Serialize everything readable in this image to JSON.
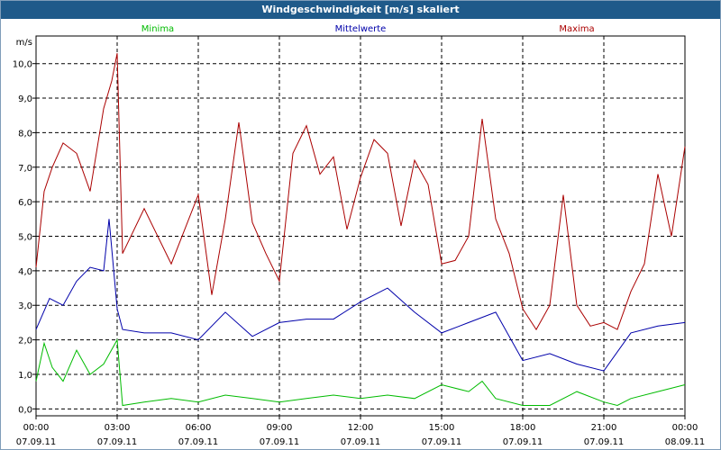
{
  "chart_data": {
    "type": "line",
    "title": "Windgeschwindigkeit [m/s] skaliert",
    "ylabel": "m/s",
    "ylim": [
      -0.2,
      10.8
    ],
    "xlim": [
      0,
      24
    ],
    "yticks": [
      0,
      1,
      2,
      3,
      4,
      5,
      6,
      7,
      8,
      9,
      10
    ],
    "ytick_labels": [
      "0,0",
      "1,0",
      "2,0",
      "3,0",
      "4,0",
      "5,0",
      "6,0",
      "7,0",
      "8,0",
      "9,0",
      "10,0"
    ],
    "xticks": [
      {
        "pos": 0,
        "time": "00:00",
        "date": "07.09.11"
      },
      {
        "pos": 3,
        "time": "03:00",
        "date": "07.09.11"
      },
      {
        "pos": 6,
        "time": "06:00",
        "date": "07.09.11"
      },
      {
        "pos": 9,
        "time": "09:00",
        "date": "07.09.11"
      },
      {
        "pos": 12,
        "time": "12:00",
        "date": "07.09.11"
      },
      {
        "pos": 15,
        "time": "15:00",
        "date": "07.09.11"
      },
      {
        "pos": 18,
        "time": "18:00",
        "date": "07.09.11"
      },
      {
        "pos": 21,
        "time": "21:00",
        "date": "07.09.11"
      },
      {
        "pos": 24,
        "time": "00:00",
        "date": "08.09.11"
      }
    ],
    "series": [
      {
        "name": "Minima",
        "color": "#00bb00",
        "x": [
          0,
          0.3,
          0.6,
          1,
          1.5,
          2,
          2.5,
          3,
          3.2,
          4,
          5,
          6,
          7,
          8,
          9,
          10,
          11,
          12,
          13,
          14,
          15,
          16,
          16.5,
          17,
          18,
          19,
          20,
          21,
          21.5,
          22,
          23,
          24
        ],
        "values": [
          0.8,
          1.9,
          1.2,
          0.8,
          1.7,
          1.0,
          1.3,
          2.0,
          0.1,
          0.2,
          0.3,
          0.2,
          0.4,
          0.3,
          0.2,
          0.3,
          0.4,
          0.3,
          0.4,
          0.3,
          0.7,
          0.5,
          0.8,
          0.3,
          0.1,
          0.1,
          0.5,
          0.2,
          0.1,
          0.3,
          0.5,
          0.7
        ]
      },
      {
        "name": "Mittelwerte",
        "color": "#0000aa",
        "x": [
          0,
          0.5,
          1,
          1.5,
          2,
          2.5,
          2.7,
          3,
          3.2,
          4,
          5,
          6,
          7,
          8,
          9,
          10,
          11,
          12,
          13,
          14,
          15,
          16,
          17,
          18,
          19,
          20,
          21,
          22,
          23,
          24
        ],
        "values": [
          2.3,
          3.2,
          3.0,
          3.7,
          4.1,
          4.0,
          5.5,
          2.9,
          2.3,
          2.2,
          2.2,
          2.0,
          2.8,
          2.1,
          2.5,
          2.6,
          2.6,
          3.1,
          3.5,
          2.8,
          2.2,
          2.5,
          2.8,
          1.4,
          1.6,
          1.3,
          1.1,
          2.2,
          2.4,
          2.5
        ]
      },
      {
        "name": "Maxima",
        "color": "#aa0000",
        "x": [
          0,
          0.3,
          0.6,
          1,
          1.5,
          2,
          2.5,
          2.8,
          3,
          3.2,
          4,
          5,
          6,
          6.5,
          7,
          7.5,
          8,
          8.5,
          9,
          9.5,
          10,
          10.5,
          11,
          11.5,
          12,
          12.5,
          13,
          13.5,
          14,
          14.5,
          15,
          15.5,
          16,
          16.5,
          17,
          17.5,
          18,
          18.5,
          19,
          19.5,
          20,
          20.5,
          21,
          21.5,
          22,
          22.5,
          23,
          23.5,
          24
        ],
        "values": [
          4.1,
          6.3,
          7.0,
          7.7,
          7.4,
          6.3,
          8.7,
          9.5,
          10.3,
          4.5,
          5.8,
          4.2,
          6.2,
          3.3,
          5.5,
          8.3,
          5.4,
          4.5,
          3.7,
          7.4,
          8.2,
          6.8,
          7.3,
          5.2,
          6.7,
          7.8,
          7.4,
          5.3,
          7.2,
          6.5,
          4.2,
          4.3,
          5.0,
          8.4,
          5.5,
          4.5,
          2.9,
          2.3,
          3.0,
          6.2,
          3.0,
          2.4,
          2.5,
          2.3,
          3.4,
          4.2,
          6.8,
          5.0,
          7.6
        ]
      }
    ]
  }
}
